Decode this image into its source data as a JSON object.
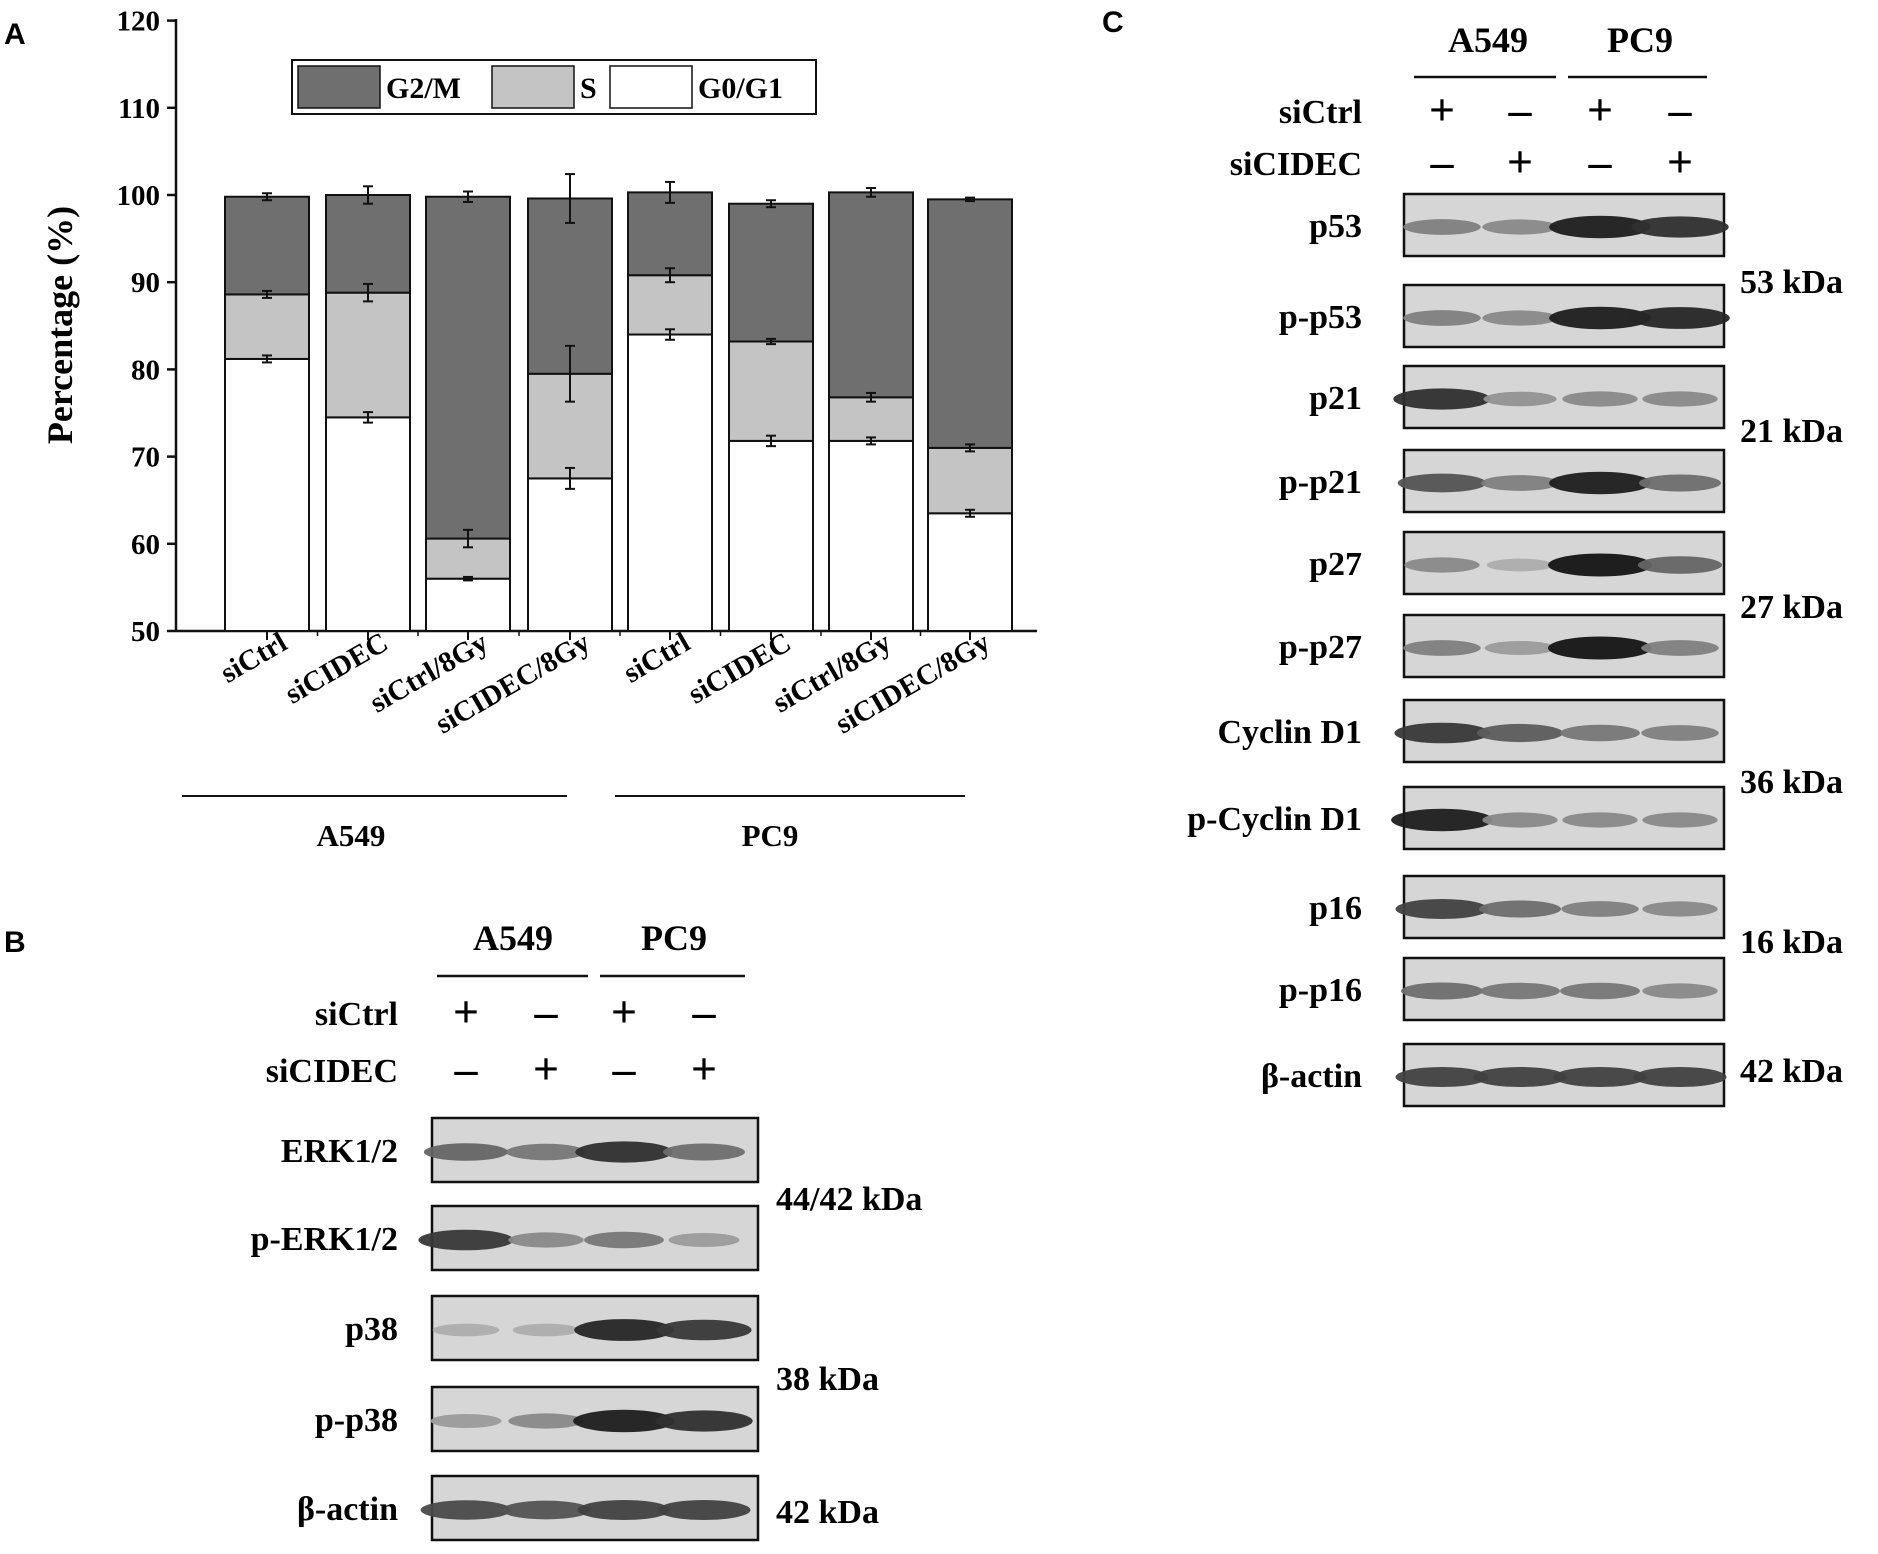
{
  "panels": {
    "a": "A",
    "b": "B",
    "c": "C"
  },
  "colors": {
    "g2m": "#6f6f6f",
    "s": "#c4c4c4",
    "g0g1": "#ffffff",
    "axis": "#111111"
  },
  "chart_data": {
    "type": "bar",
    "stacked": true,
    "ylabel": "Percentage (%)",
    "xlabel": "",
    "ylim": [
      50,
      120
    ],
    "yticks": [
      50,
      60,
      70,
      80,
      90,
      100,
      110,
      120
    ],
    "categories": [
      "siCtrl",
      "siCIDEC",
      "siCtrl/8Gy",
      "siCIDEC/8Gy",
      "siCtrl",
      "siCIDEC",
      "siCtrl/8Gy",
      "siCIDEC/8Gy"
    ],
    "groups": [
      {
        "name": "A549",
        "indices": [
          0,
          1,
          2,
          3
        ]
      },
      {
        "name": "PC9",
        "indices": [
          4,
          5,
          6,
          7
        ]
      }
    ],
    "legend": {
      "position": "top",
      "order": [
        "G2/M",
        "S",
        "G0/G1"
      ]
    },
    "series": [
      {
        "name": "G0/G1",
        "color": "#ffffff",
        "top": [
          81.2,
          74.5,
          56.0,
          67.5,
          84.0,
          71.8,
          71.8,
          63.5
        ],
        "err": [
          0.4,
          0.6,
          0.2,
          1.2,
          0.6,
          0.6,
          0.4,
          0.4
        ]
      },
      {
        "name": "S",
        "color": "#c4c4c4",
        "top": [
          88.6,
          88.8,
          60.6,
          79.5,
          90.8,
          83.2,
          76.8,
          71.0
        ],
        "err": [
          0.4,
          1.0,
          1.0,
          3.2,
          0.8,
          0.3,
          0.5,
          0.4
        ]
      },
      {
        "name": "G2/M",
        "color": "#6f6f6f",
        "top": [
          99.8,
          100.0,
          99.8,
          99.6,
          100.3,
          99.0,
          100.3,
          99.5
        ],
        "err": [
          0.4,
          1.0,
          0.6,
          2.8,
          1.2,
          0.4,
          0.5,
          0.2
        ]
      }
    ]
  },
  "blots": {
    "b": {
      "columns": [
        "A549",
        "PC9"
      ],
      "conditions": [
        {
          "label": "siCtrl",
          "marks": [
            "+",
            "–",
            "+",
            "–"
          ]
        },
        {
          "label": "siCIDEC",
          "marks": [
            "–",
            "+",
            "–",
            "+"
          ]
        }
      ],
      "rows": [
        {
          "label": "ERK1/2",
          "bands": [
            0.55,
            0.45,
            0.85,
            0.5
          ]
        },
        {
          "label": "p-ERK1/2",
          "bands": [
            0.8,
            0.35,
            0.45,
            0.25
          ]
        },
        {
          "label": "p38",
          "bands": [
            0.15,
            0.15,
            0.9,
            0.8
          ]
        },
        {
          "label": "p-p38",
          "bands": [
            0.25,
            0.35,
            0.95,
            0.85
          ]
        },
        {
          "label": "β-actin",
          "bands": [
            0.7,
            0.65,
            0.75,
            0.75
          ]
        }
      ],
      "weights": [
        "44/42 kDa",
        "38 kDa",
        "42 kDa"
      ]
    },
    "c": {
      "columns": [
        "A549",
        "PC9"
      ],
      "conditions": [
        {
          "label": "siCtrl",
          "marks": [
            "+",
            "–",
            "+",
            "–"
          ]
        },
        {
          "label": "siCIDEC",
          "marks": [
            "–",
            "+",
            "–",
            "+"
          ]
        }
      ],
      "rows": [
        {
          "label": "p53",
          "bands": [
            0.4,
            0.35,
            0.95,
            0.85
          ]
        },
        {
          "label": "p-p53",
          "bands": [
            0.4,
            0.35,
            0.95,
            0.9
          ]
        },
        {
          "label": "p21",
          "bands": [
            0.85,
            0.3,
            0.35,
            0.35
          ]
        },
        {
          "label": "p-p21",
          "bands": [
            0.65,
            0.4,
            0.95,
            0.5
          ]
        },
        {
          "label": "p27",
          "bands": [
            0.35,
            0.15,
            1.0,
            0.55
          ]
        },
        {
          "label": "p-p27",
          "bands": [
            0.4,
            0.25,
            1.0,
            0.4
          ]
        },
        {
          "label": "Cyclin D1",
          "bands": [
            0.8,
            0.6,
            0.45,
            0.4
          ]
        },
        {
          "label": "p-Cyclin D1",
          "bands": [
            0.95,
            0.35,
            0.35,
            0.35
          ]
        },
        {
          "label": "p16",
          "bands": [
            0.75,
            0.5,
            0.4,
            0.35
          ]
        },
        {
          "label": "p-p16",
          "bands": [
            0.5,
            0.45,
            0.45,
            0.35
          ]
        },
        {
          "label": "β-actin",
          "bands": [
            0.75,
            0.75,
            0.75,
            0.75
          ]
        }
      ],
      "weights": [
        "53 kDa",
        "21 kDa",
        "27 kDa",
        "36 kDa",
        "16 kDa",
        "42 kDa"
      ]
    }
  }
}
